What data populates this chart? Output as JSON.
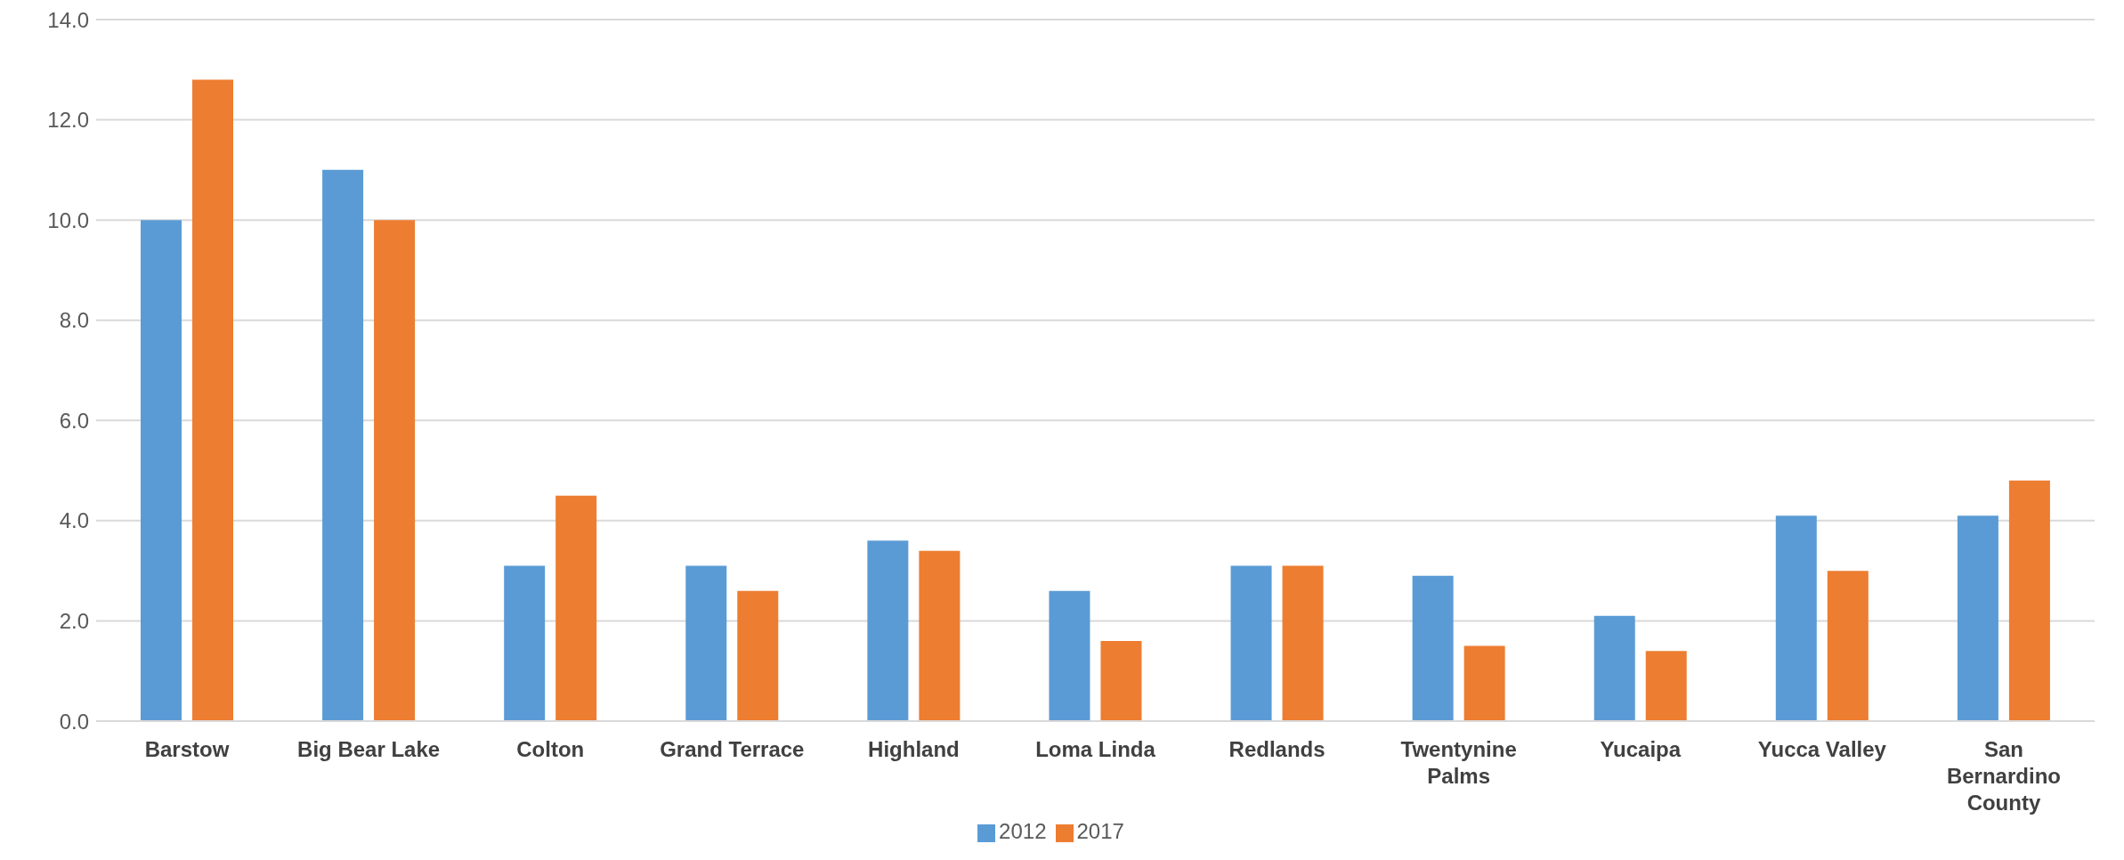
{
  "chart_data": {
    "type": "bar",
    "categories": [
      "Barstow",
      "Big Bear Lake",
      "Colton",
      "Grand Terrace",
      "Highland",
      "Loma Linda",
      "Redlands",
      "Twentynine Palms",
      "Yucaipa",
      "Yucca Valley",
      "San Bernardino County"
    ],
    "series": [
      {
        "name": "2012",
        "color": "#5b9bd5",
        "values": [
          10.0,
          11.0,
          3.1,
          3.1,
          3.6,
          2.6,
          3.1,
          2.9,
          2.1,
          4.1,
          4.1
        ]
      },
      {
        "name": "2017",
        "color": "#ed7d31",
        "values": [
          12.8,
          10.0,
          4.5,
          2.6,
          3.4,
          1.6,
          3.1,
          1.5,
          1.4,
          3.0,
          4.8
        ]
      }
    ],
    "ylim": [
      0,
      14
    ],
    "yticks": [
      {
        "value": 0,
        "label": "0.0"
      },
      {
        "value": 2,
        "label": "2.0"
      },
      {
        "value": 4,
        "label": "4.0"
      },
      {
        "value": 6,
        "label": "6.0"
      },
      {
        "value": 8,
        "label": "8.0"
      },
      {
        "value": 10,
        "label": "10.0"
      },
      {
        "value": 12,
        "label": "12.0"
      },
      {
        "value": 14,
        "label": "14.0"
      }
    ],
    "grid": "y",
    "legend": "bottom"
  }
}
